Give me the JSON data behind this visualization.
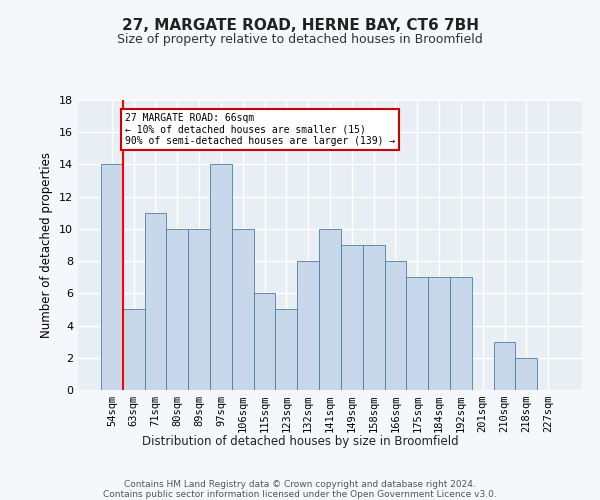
{
  "title": "27, MARGATE ROAD, HERNE BAY, CT6 7BH",
  "subtitle": "Size of property relative to detached houses in Broomfield",
  "xlabel": "Distribution of detached houses by size in Broomfield",
  "ylabel": "Number of detached properties",
  "categories": [
    "54sqm",
    "63sqm",
    "71sqm",
    "80sqm",
    "89sqm",
    "97sqm",
    "106sqm",
    "115sqm",
    "123sqm",
    "132sqm",
    "141sqm",
    "149sqm",
    "158sqm",
    "166sqm",
    "175sqm",
    "184sqm",
    "192sqm",
    "201sqm",
    "210sqm",
    "218sqm",
    "227sqm"
  ],
  "values": [
    14,
    5,
    11,
    10,
    10,
    14,
    10,
    6,
    5,
    8,
    10,
    9,
    9,
    8,
    7,
    7,
    7,
    0,
    3,
    2,
    0
  ],
  "bar_color": "#c8d8ea",
  "bar_edge_color": "#4a7fa5",
  "background_color": "#e8eef4",
  "grid_color": "#ffffff",
  "ylim": [
    0,
    18
  ],
  "yticks": [
    0,
    2,
    4,
    6,
    8,
    10,
    12,
    14,
    16,
    18
  ],
  "red_line_x": 1,
  "annotation_title": "27 MARGATE ROAD: 66sqm",
  "annotation_line1": "← 10% of detached houses are smaller (15)",
  "annotation_line2": "90% of semi-detached houses are larger (139) →",
  "annotation_box_color": "#ffffff",
  "annotation_box_edge": "#cc0000",
  "title_fontsize": 11,
  "subtitle_fontsize": 9,
  "footer_line1": "Contains HM Land Registry data © Crown copyright and database right 2024.",
  "footer_line2": "Contains public sector information licensed under the Open Government Licence v3.0."
}
